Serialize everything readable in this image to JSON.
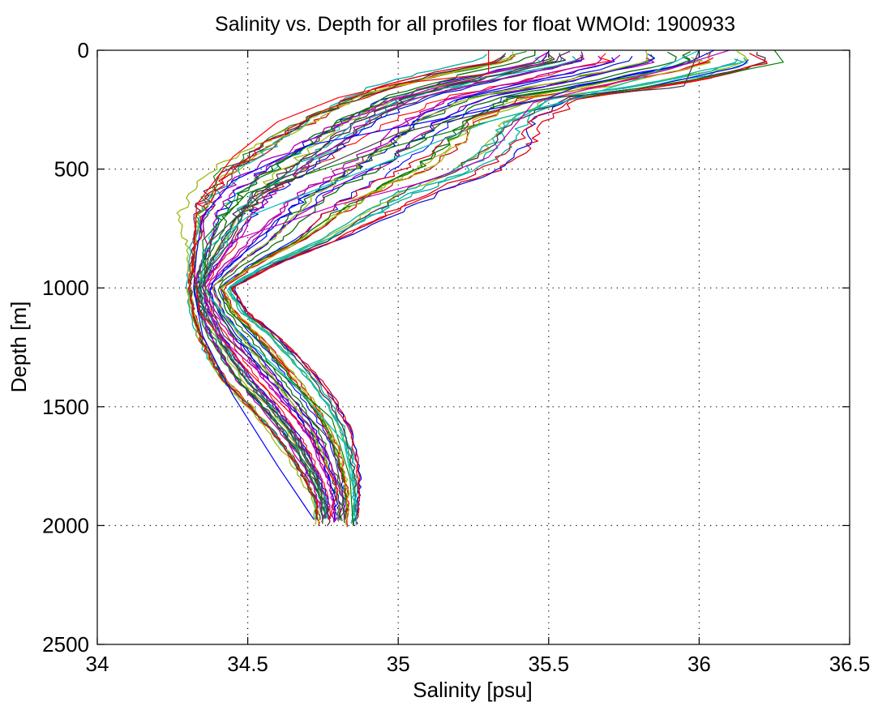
{
  "chart_data": {
    "type": "line",
    "title": "Salinity vs. Depth for all profiles for float WMOId: 1900933",
    "xlabel": "Salinity [psu]",
    "ylabel": "Depth [m]",
    "xlim": [
      34,
      36.5
    ],
    "ylim": [
      2500,
      0
    ],
    "y_reversed": true,
    "grid": true,
    "x_ticks": [
      34,
      34.5,
      35,
      35.5,
      36,
      36.5
    ],
    "y_ticks": [
      0,
      500,
      1000,
      1500,
      2000,
      2500
    ],
    "x_tick_labels": [
      "34",
      "34.5",
      "35",
      "35.5",
      "36",
      "36.5"
    ],
    "y_tick_labels": [
      "0",
      "500",
      "1000",
      "1500",
      "2000",
      "2500"
    ],
    "series_colors": [
      "#0000ff",
      "#008000",
      "#ff0000",
      "#00bfbf",
      "#bf00bf",
      "#bfbf00",
      "#404040"
    ],
    "profile_count": 140,
    "series_representative": [
      {
        "color": "#0000ff",
        "x": [
          36.05,
          35.95,
          35.6,
          35.5,
          34.7,
          34.45,
          34.35,
          34.33,
          34.32,
          34.35,
          34.45,
          34.6,
          34.72
        ],
        "y": [
          0,
          60,
          150,
          200,
          400,
          550,
          700,
          850,
          1000,
          1200,
          1450,
          1750,
          1975
        ]
      },
      {
        "color": "#008000",
        "x": [
          36.25,
          36.28,
          36.0,
          35.6,
          35.0,
          34.5,
          34.35,
          34.36,
          34.45,
          34.6,
          34.78,
          34.84,
          34.85
        ],
        "y": [
          0,
          50,
          120,
          200,
          400,
          600,
          800,
          1000,
          1200,
          1350,
          1550,
          1800,
          2000
        ]
      },
      {
        "color": "#ff0000",
        "x": [
          35.3,
          35.3,
          35.0,
          34.8,
          34.6,
          34.45,
          34.33,
          34.32,
          34.34,
          34.5,
          34.7,
          34.8,
          34.77
        ],
        "y": [
          0,
          100,
          140,
          200,
          300,
          450,
          650,
          900,
          1100,
          1350,
          1600,
          1850,
          1975
        ]
      },
      {
        "color": "#00bfbf",
        "x": [
          36.0,
          35.8,
          35.6,
          35.3,
          34.9,
          34.5,
          34.35,
          34.35,
          34.48,
          34.65,
          34.82,
          34.86,
          34.86
        ],
        "y": [
          0,
          120,
          200,
          300,
          500,
          700,
          850,
          1000,
          1200,
          1400,
          1650,
          1900,
          2000
        ]
      },
      {
        "color": "#bf00bf",
        "x": [
          36.1,
          35.9,
          35.45,
          35.3,
          35.1,
          34.8,
          34.45,
          34.35,
          34.4,
          34.58,
          34.75,
          34.82,
          34.82
        ],
        "y": [
          0,
          80,
          220,
          450,
          550,
          650,
          800,
          1000,
          1200,
          1400,
          1650,
          1900,
          1975
        ]
      },
      {
        "color": "#404040",
        "x": [
          36.0,
          35.95,
          35.9,
          35.5,
          35.0,
          34.55,
          34.38,
          34.35,
          34.42,
          34.6,
          34.78,
          34.82,
          34.8
        ],
        "y": [
          0,
          150,
          160,
          200,
          350,
          600,
          800,
          1000,
          1200,
          1400,
          1650,
          1900,
          1975
        ]
      }
    ]
  }
}
